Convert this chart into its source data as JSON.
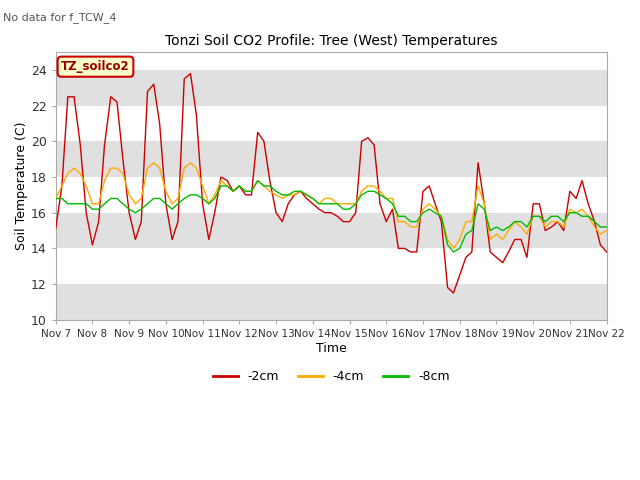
{
  "title": "Tonzi Soil CO2 Profile: Tree (West) Temperatures",
  "subtitle": "No data for f_TCW_4",
  "xlabel": "Time",
  "ylabel": "Soil Temperature (C)",
  "ylim": [
    10,
    25
  ],
  "yticks": [
    10,
    12,
    14,
    16,
    18,
    20,
    22,
    24
  ],
  "legend_label": "TZ_soilco2",
  "series_labels": [
    "-2cm",
    "-4cm",
    "-8cm"
  ],
  "series_colors": [
    "#cc0000",
    "#ffaa00",
    "#00bb00"
  ],
  "background_color": "#ffffff",
  "band_color": "#e0e0e0",
  "xtick_labels": [
    "Nov 7",
    "Nov 8",
    "Nov 9",
    "Nov 10",
    "Nov 11",
    "Nov 12",
    "Nov 13",
    "Nov 14",
    "Nov 15",
    "Nov 16",
    "Nov 17",
    "Nov 18",
    "Nov 19",
    "Nov 20",
    "Nov 21",
    "Nov 22"
  ],
  "x_values": [
    7.0,
    7.17,
    7.33,
    7.5,
    7.67,
    7.83,
    8.0,
    8.17,
    8.33,
    8.5,
    8.67,
    8.83,
    9.0,
    9.17,
    9.33,
    9.5,
    9.67,
    9.83,
    10.0,
    10.17,
    10.33,
    10.5,
    10.67,
    10.83,
    11.0,
    11.17,
    11.33,
    11.5,
    11.67,
    11.83,
    12.0,
    12.17,
    12.33,
    12.5,
    12.67,
    12.83,
    13.0,
    13.17,
    13.33,
    13.5,
    13.67,
    13.83,
    14.0,
    14.17,
    14.33,
    14.5,
    14.67,
    14.83,
    15.0,
    15.17,
    15.33,
    15.5,
    15.67,
    15.83,
    16.0,
    16.17,
    16.33,
    16.5,
    16.67,
    16.83,
    17.0,
    17.17,
    17.33,
    17.5,
    17.67,
    17.83,
    18.0,
    18.17,
    18.33,
    18.5,
    18.67,
    18.83,
    19.0,
    19.17,
    19.33,
    19.5,
    19.67,
    19.83,
    20.0,
    20.17,
    20.33,
    20.5,
    20.67,
    20.83,
    21.0,
    21.17,
    21.33,
    21.5,
    21.67,
    21.83,
    22.0
  ],
  "y_2cm": [
    15.1,
    17.5,
    22.5,
    22.5,
    19.8,
    16.0,
    14.2,
    15.5,
    19.8,
    22.5,
    22.2,
    19.0,
    16.0,
    14.5,
    15.5,
    22.8,
    23.2,
    21.0,
    16.5,
    14.5,
    15.5,
    23.5,
    23.8,
    21.5,
    16.5,
    14.5,
    16.0,
    18.0,
    17.8,
    17.2,
    17.5,
    17.0,
    17.0,
    20.5,
    20.0,
    17.8,
    16.0,
    15.5,
    16.5,
    17.0,
    17.2,
    16.8,
    16.5,
    16.2,
    16.0,
    16.0,
    15.8,
    15.5,
    15.5,
    16.0,
    20.0,
    20.2,
    19.8,
    16.5,
    15.5,
    16.2,
    14.0,
    14.0,
    13.8,
    13.8,
    17.2,
    17.5,
    16.5,
    15.5,
    11.8,
    11.5,
    12.5,
    13.5,
    13.8,
    18.8,
    16.5,
    13.8,
    13.5,
    13.2,
    13.8,
    14.5,
    14.5,
    13.5,
    16.5,
    16.5,
    15.0,
    15.2,
    15.5,
    15.0,
    17.2,
    16.8,
    17.8,
    16.5,
    15.5,
    14.2,
    13.8
  ],
  "y_4cm": [
    16.8,
    17.5,
    18.2,
    18.5,
    18.2,
    17.5,
    16.5,
    16.5,
    17.8,
    18.5,
    18.5,
    18.2,
    17.0,
    16.5,
    16.8,
    18.5,
    18.8,
    18.5,
    17.2,
    16.5,
    16.8,
    18.5,
    18.8,
    18.5,
    17.5,
    16.5,
    17.0,
    17.8,
    17.5,
    17.2,
    17.5,
    17.2,
    17.2,
    17.8,
    17.5,
    17.2,
    17.0,
    16.8,
    17.0,
    17.0,
    17.2,
    17.0,
    16.8,
    16.5,
    16.8,
    16.8,
    16.5,
    16.5,
    16.5,
    16.5,
    17.2,
    17.5,
    17.5,
    17.2,
    16.8,
    16.8,
    15.5,
    15.5,
    15.2,
    15.2,
    16.2,
    16.5,
    16.2,
    15.8,
    14.5,
    14.0,
    14.5,
    15.5,
    15.5,
    17.5,
    16.5,
    14.5,
    14.8,
    14.5,
    15.0,
    15.5,
    15.2,
    14.8,
    15.8,
    15.8,
    15.2,
    15.5,
    15.5,
    15.2,
    16.2,
    16.0,
    16.2,
    15.8,
    15.2,
    14.8,
    15.0
  ],
  "y_8cm": [
    16.8,
    16.8,
    16.5,
    16.5,
    16.5,
    16.5,
    16.2,
    16.2,
    16.5,
    16.8,
    16.8,
    16.5,
    16.2,
    16.0,
    16.2,
    16.5,
    16.8,
    16.8,
    16.5,
    16.2,
    16.5,
    16.8,
    17.0,
    17.0,
    16.8,
    16.5,
    16.8,
    17.5,
    17.5,
    17.2,
    17.5,
    17.2,
    17.2,
    17.8,
    17.5,
    17.5,
    17.2,
    17.0,
    17.0,
    17.2,
    17.2,
    17.0,
    16.8,
    16.5,
    16.5,
    16.5,
    16.5,
    16.2,
    16.2,
    16.5,
    17.0,
    17.2,
    17.2,
    17.0,
    16.8,
    16.5,
    15.8,
    15.8,
    15.5,
    15.5,
    16.0,
    16.2,
    16.0,
    15.8,
    14.2,
    13.8,
    14.0,
    14.8,
    15.0,
    16.5,
    16.2,
    15.0,
    15.2,
    15.0,
    15.2,
    15.5,
    15.5,
    15.2,
    15.8,
    15.8,
    15.5,
    15.8,
    15.8,
    15.5,
    16.0,
    16.0,
    15.8,
    15.8,
    15.5,
    15.2,
    15.2
  ]
}
